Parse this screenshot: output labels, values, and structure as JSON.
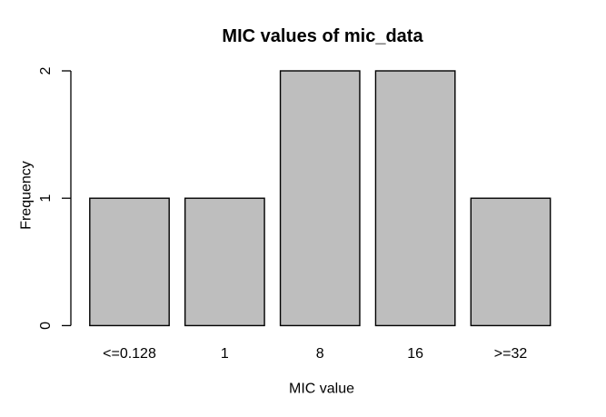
{
  "chart_data": {
    "type": "bar",
    "title": "MIC values of mic_data",
    "xlabel": "MIC value",
    "ylabel": "Frequency",
    "categories": [
      "<=0.128",
      "1",
      "8",
      "16",
      ">=32"
    ],
    "values": [
      1,
      1,
      2,
      2,
      1
    ],
    "yticks": [
      0,
      1,
      2
    ],
    "ylim": [
      0,
      2
    ],
    "grid": false,
    "legend": null,
    "colors": {
      "bar_fill": "#BEBEBE",
      "bar_stroke": "#000000",
      "axis": "#000000",
      "text": "#000000",
      "background": "#FFFFFF"
    }
  }
}
